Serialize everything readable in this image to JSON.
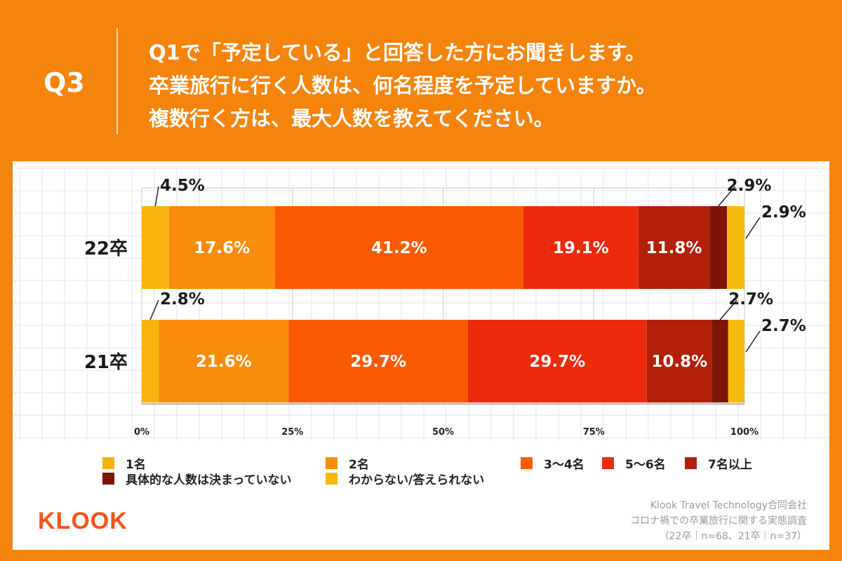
{
  "question": {
    "label": "Q3",
    "lines": [
      "Q1で「予定している」と回答した方にお聞きします。",
      "卒業旅行に行く人数は、何名程度を予定していますか。",
      "複数行く方は、最大人数を教えてください。"
    ]
  },
  "chart_data": {
    "type": "bar",
    "orientation": "horizontal-stacked-100",
    "categories": [
      "22卒",
      "21卒"
    ],
    "series": [
      {
        "name": "1名",
        "color": "#F7B40E",
        "values": [
          4.5,
          2.8
        ]
      },
      {
        "name": "2名",
        "color": "#F98C0A",
        "values": [
          17.6,
          21.6
        ]
      },
      {
        "name": "3〜4名",
        "color": "#FA5A00",
        "values": [
          41.2,
          29.7
        ]
      },
      {
        "name": "5〜6名",
        "color": "#EC2A0C",
        "values": [
          19.1,
          29.7
        ]
      },
      {
        "name": "7名以上",
        "color": "#B2200A",
        "values": [
          11.8,
          10.8
        ]
      },
      {
        "name": "具体的な人数は決まっていない",
        "color": "#7E1408",
        "values": [
          2.9,
          2.7
        ]
      },
      {
        "name": "わからない/答えられない",
        "color": "#F7BA0C",
        "values": [
          2.9,
          2.7
        ]
      }
    ],
    "data_labels": [
      [
        "4.5%",
        "17.6%",
        "41.2%",
        "19.1%",
        "11.8%",
        "2.9%",
        "2.9%"
      ],
      [
        "2.8%",
        "21.6%",
        "29.7%",
        "29.7%",
        "10.8%",
        "2.7%",
        "2.7%"
      ]
    ],
    "xticks": [
      "0%",
      "25%",
      "50%",
      "75%",
      "100%"
    ],
    "xlim": [
      0,
      100
    ],
    "legend_position": "bottom"
  },
  "colors": {
    "background": "#F5840C",
    "grid": "#E6E6E6",
    "credit": "#9A9A9A",
    "logo": "#F5541C"
  },
  "logo": "KLOOK",
  "credit": [
    "Klook Travel Technology合同会社",
    "コロナ禍での卒業旅行に関する実態調査",
    "（22卒｜n=68、21卒｜n=37）"
  ]
}
